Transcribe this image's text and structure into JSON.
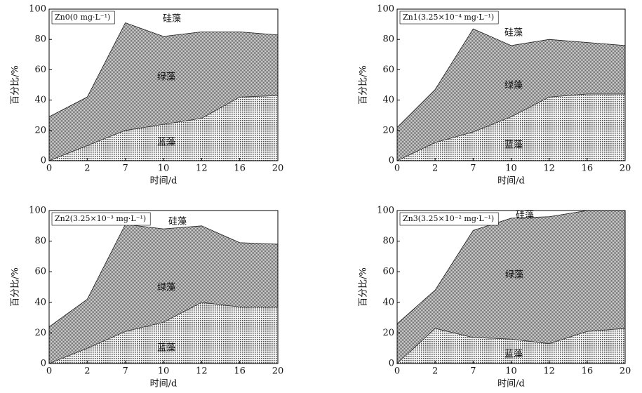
{
  "chart_data": [
    {
      "type": "stacked_area",
      "title": "Zn0(0 mg·L⁻¹)",
      "xlabel": "时间/d",
      "ylabel": "百分比/%",
      "categories": [
        "0",
        "2",
        "7",
        "10",
        "12",
        "16",
        "20"
      ],
      "series": [
        {
          "name": "蓝藻",
          "color": "#d8d8d8",
          "values": [
            0,
            10,
            20,
            24,
            28,
            42,
            43
          ]
        },
        {
          "name": "绿藻",
          "color": "#a8a8a8",
          "values": [
            29,
            32,
            71,
            58,
            57,
            43,
            40
          ]
        },
        {
          "name": "硅藻",
          "color": "#ffffff",
          "values": [
            71,
            58,
            9,
            18,
            15,
            15,
            17
          ]
        }
      ],
      "ylim": [
        0,
        100
      ],
      "yticks": [
        0,
        20,
        40,
        60,
        80,
        100
      ]
    },
    {
      "type": "stacked_area",
      "title": "Zn1(3.25×10⁻⁴ mg·L⁻¹)",
      "xlabel": "时间/d",
      "ylabel": "百分比/%",
      "categories": [
        "0",
        "2",
        "7",
        "10",
        "12",
        "16",
        "20"
      ],
      "series": [
        {
          "name": "蓝藻",
          "color": "#d8d8d8",
          "values": [
            0,
            12,
            19,
            29,
            42,
            44,
            44
          ]
        },
        {
          "name": "绿藻",
          "color": "#a8a8a8",
          "values": [
            22,
            35,
            68,
            47,
            38,
            34,
            32
          ]
        },
        {
          "name": "硅藻",
          "color": "#ffffff",
          "values": [
            78,
            53,
            13,
            24,
            20,
            22,
            24
          ]
        }
      ],
      "ylim": [
        0,
        100
      ],
      "yticks": [
        0,
        20,
        40,
        60,
        80,
        100
      ]
    },
    {
      "type": "stacked_area",
      "title": "Zn2(3.25×10⁻³ mg·L⁻¹)",
      "xlabel": "时间/d",
      "ylabel": "百分比/%",
      "categories": [
        "0",
        "2",
        "7",
        "10",
        "12",
        "16",
        "20"
      ],
      "series": [
        {
          "name": "蓝藻",
          "color": "#d8d8d8",
          "values": [
            0,
            10,
            21,
            27,
            40,
            37,
            37
          ]
        },
        {
          "name": "绿藻",
          "color": "#a8a8a8",
          "values": [
            24,
            32,
            70,
            61,
            50,
            42,
            41
          ]
        },
        {
          "name": "硅藻",
          "color": "#ffffff",
          "values": [
            76,
            58,
            9,
            12,
            10,
            21,
            22
          ]
        }
      ],
      "ylim": [
        0,
        100
      ],
      "yticks": [
        0,
        20,
        40,
        60,
        80,
        100
      ]
    },
    {
      "type": "stacked_area",
      "title": "Zn3(3.25×10⁻² mg·L⁻¹)",
      "xlabel": "时间/d",
      "ylabel": "百分比/%",
      "categories": [
        "0",
        "2",
        "7",
        "10",
        "12",
        "16",
        "20"
      ],
      "series": [
        {
          "name": "蓝藻",
          "color": "#d8d8d8",
          "values": [
            0,
            23,
            17,
            16,
            13,
            21,
            23
          ]
        },
        {
          "name": "绿藻",
          "color": "#a8a8a8",
          "values": [
            26,
            25,
            70,
            79,
            83,
            79,
            77
          ]
        },
        {
          "name": "硅藻",
          "color": "#ffffff",
          "values": [
            74,
            52,
            13,
            5,
            4,
            0,
            0
          ]
        }
      ],
      "ylim": [
        0,
        100
      ],
      "yticks": [
        0,
        20,
        40,
        60,
        80,
        100
      ]
    }
  ]
}
